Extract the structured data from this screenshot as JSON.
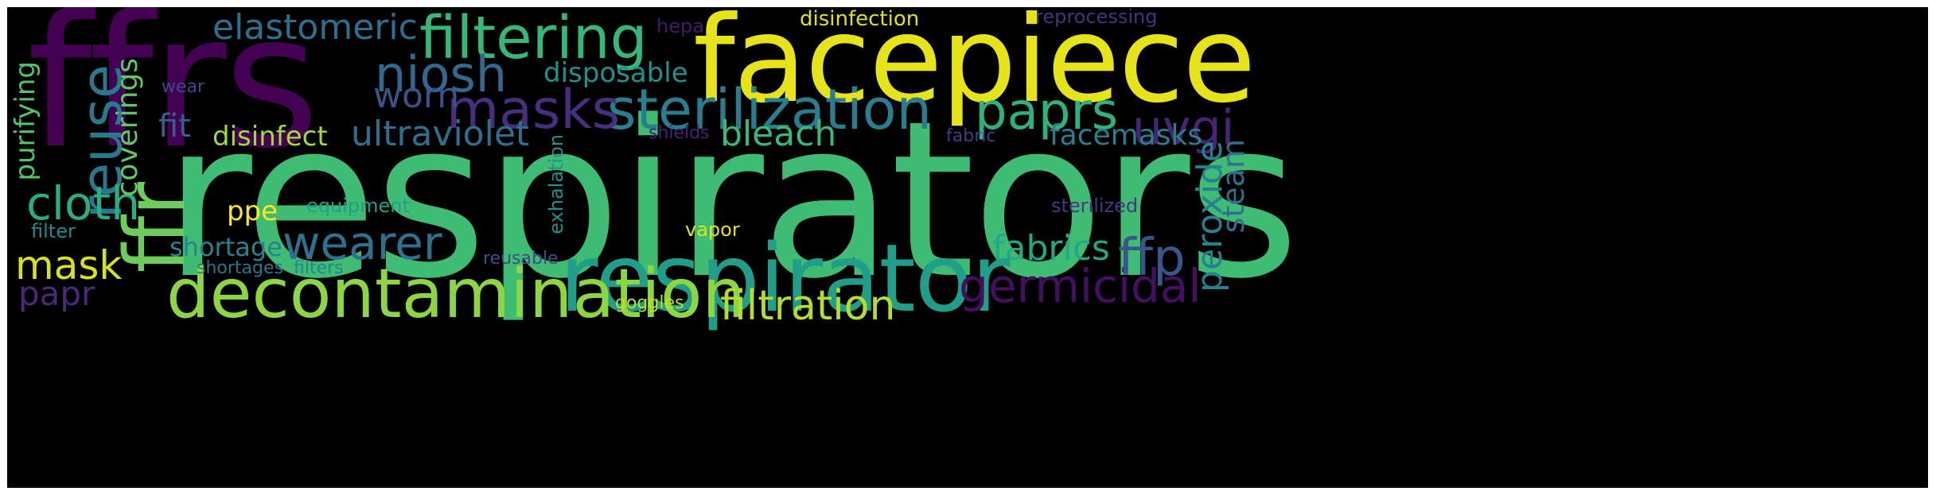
{
  "words": [
    {
      "id": "ffrs",
      "text": "ffrs",
      "color": "#440154",
      "vertical": false
    },
    {
      "id": "respirators",
      "text": "respirators",
      "color": "#3fbc73",
      "vertical": false
    },
    {
      "id": "facepiece",
      "text": "facepiece",
      "color": "#e6e419",
      "vertical": false
    },
    {
      "id": "respirator",
      "text": "respirator",
      "color": "#1f9e89",
      "vertical": false
    },
    {
      "id": "decontamination",
      "text": "decontamination",
      "color": "#8ed542",
      "vertical": false
    },
    {
      "id": "ffr",
      "text": "ffr",
      "color": "#6ccd5a",
      "vertical": true
    },
    {
      "id": "filtering",
      "text": "filtering",
      "color": "#35b779",
      "vertical": false
    },
    {
      "id": "sterilization",
      "text": "sterilization",
      "color": "#287d8e",
      "vertical": false
    },
    {
      "id": "masks",
      "text": "masks",
      "color": "#472f7d",
      "vertical": false
    },
    {
      "id": "reuse",
      "text": "reuse",
      "color": "#2a788e",
      "vertical": true
    },
    {
      "id": "paprs",
      "text": "paprs",
      "color": "#2db27d",
      "vertical": false
    },
    {
      "id": "niosh",
      "text": "niosh",
      "color": "#31688e",
      "vertical": false
    },
    {
      "id": "uvgi",
      "text": "uvgi",
      "color": "#482475",
      "vertical": false
    },
    {
      "id": "wearer",
      "text": "wearer",
      "color": "#2c728e",
      "vertical": false
    },
    {
      "id": "germicidal",
      "text": "germicidal",
      "color": "#440f60",
      "vertical": false
    },
    {
      "id": "ffp",
      "text": "ffp",
      "color": "#39568c",
      "vertical": false
    },
    {
      "id": "filtration",
      "text": "filtration",
      "color": "#b5de2b",
      "vertical": false
    },
    {
      "id": "elastomeric",
      "text": "elastomeric",
      "color": "#2d708e",
      "vertical": false
    },
    {
      "id": "cloth",
      "text": "cloth",
      "color": "#29af7f",
      "vertical": false
    },
    {
      "id": "mask",
      "text": "mask",
      "color": "#d8e219",
      "vertical": false
    },
    {
      "id": "worn",
      "text": "worn",
      "color": "#3b528b",
      "vertical": false
    },
    {
      "id": "ultraviolet",
      "text": "ultraviolet",
      "color": "#2e6f8e",
      "vertical": false
    },
    {
      "id": "bleach",
      "text": "bleach",
      "color": "#37b878",
      "vertical": false
    },
    {
      "id": "fabrics",
      "text": "fabrics",
      "color": "#22a884",
      "vertical": false
    },
    {
      "id": "peroxide",
      "text": "peroxide",
      "color": "#26818e",
      "vertical": true
    },
    {
      "id": "steam",
      "text": "steam",
      "color": "#2d718e",
      "vertical": true
    },
    {
      "id": "papr",
      "text": "papr",
      "color": "#482878",
      "vertical": false
    },
    {
      "id": "facemasks",
      "text": "facemasks",
      "color": "#277f8e",
      "vertical": false
    },
    {
      "id": "disposable",
      "text": "disposable",
      "color": "#20928c",
      "vertical": false
    },
    {
      "id": "coverings",
      "text": "coverings",
      "color": "#5ec962",
      "vertical": true
    },
    {
      "id": "fit",
      "text": "fit",
      "color": "#355f8d",
      "vertical": false
    },
    {
      "id": "disinfect",
      "text": "disinfect",
      "color": "#a2da37",
      "vertical": false
    },
    {
      "id": "shortage",
      "text": "shortage",
      "color": "#25848e",
      "vertical": false
    },
    {
      "id": "purifying",
      "text": "purifying",
      "color": "#52c569",
      "vertical": true
    },
    {
      "id": "ppe",
      "text": "ppe",
      "color": "#fde725",
      "vertical": false
    },
    {
      "id": "equipment",
      "text": "equipment",
      "color": "#1fa088",
      "vertical": false
    },
    {
      "id": "exhalation",
      "text": "exhalation",
      "color": "#21918c",
      "vertical": true
    },
    {
      "id": "disinfection",
      "text": "disinfection",
      "color": "#dde318",
      "vertical": false
    },
    {
      "id": "reprocessing",
      "text": "reprocessing",
      "color": "#46337e",
      "vertical": false
    },
    {
      "id": "hepa",
      "text": "hepa",
      "color": "#48186a",
      "vertical": false
    },
    {
      "id": "wear",
      "text": "wear",
      "color": "#3e4a89",
      "vertical": false
    },
    {
      "id": "shields",
      "text": "shields",
      "color": "#482173",
      "vertical": false
    },
    {
      "id": "fabric",
      "text": "fabric",
      "color": "#433e85",
      "vertical": false
    },
    {
      "id": "sterilized",
      "text": "sterilized",
      "color": "#453781",
      "vertical": false
    },
    {
      "id": "vapor",
      "text": "vapor",
      "color": "#e5e419",
      "vertical": false
    },
    {
      "id": "filter",
      "text": "filter",
      "color": "#23898e",
      "vertical": false
    },
    {
      "id": "shortages",
      "text": "shortages",
      "color": "#2b748e",
      "vertical": false
    },
    {
      "id": "filters",
      "text": "filters",
      "color": "#24868e",
      "vertical": false
    },
    {
      "id": "reusable",
      "text": "reusable",
      "color": "#3d4d8a",
      "vertical": false
    },
    {
      "id": "goggles",
      "text": "goggles",
      "color": "#c2df23",
      "vertical": false
    }
  ]
}
